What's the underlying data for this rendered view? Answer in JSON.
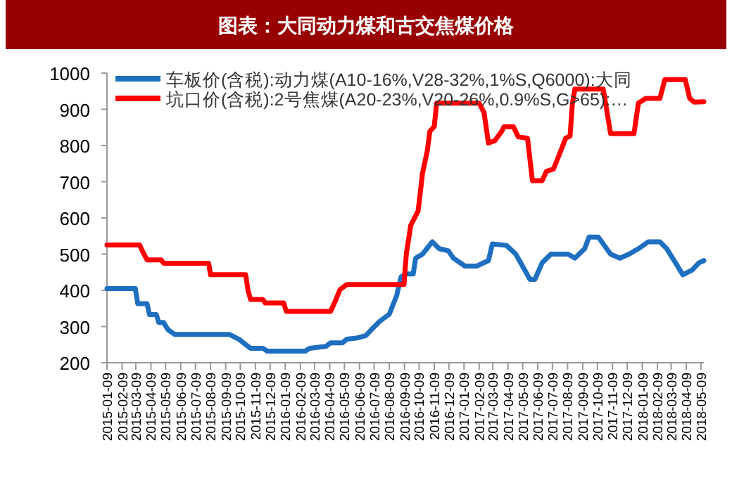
{
  "chart_data": {
    "type": "line",
    "title": "图表：大同动力煤和古交焦煤价格",
    "ylim": [
      200,
      1000
    ],
    "yticks": [
      200,
      300,
      400,
      500,
      600,
      700,
      800,
      900,
      1000
    ],
    "xlim": [
      "2015-01-09",
      "2018-05-15"
    ],
    "xticks": [
      "2015-01-09",
      "2015-02-09",
      "2015-03-09",
      "2015-04-09",
      "2015-05-09",
      "2015-06-09",
      "2015-07-09",
      "2015-08-09",
      "2015-09-09",
      "2015-10-09",
      "2015-11-09",
      "2015-12-09",
      "2016-01-09",
      "2016-02-09",
      "2016-03-09",
      "2016-04-09",
      "2016-05-09",
      "2016-06-09",
      "2016-07-09",
      "2016-08-09",
      "2016-09-09",
      "2016-10-09",
      "2016-11-09",
      "2016-12-09",
      "2017-01-09",
      "2017-02-09",
      "2017-03-09",
      "2017-04-09",
      "2017-05-09",
      "2017-06-09",
      "2017-07-09",
      "2017-08-09",
      "2017-09-09",
      "2017-10-09",
      "2017-11-09",
      "2017-12-09",
      "2018-01-09",
      "2018-02-09",
      "2018-03-09",
      "2018-04-09",
      "2018-05-09"
    ],
    "grid": false,
    "legend": "top left",
    "marker": "none",
    "line_style": "solid",
    "series": [
      {
        "name": "车板价(含税):动力煤(A10-16%,V28-32%,1%S,Q6000):大同",
        "color": "#1f6fc0",
        "x": [
          "2015-01-09",
          "2015-03-08",
          "2015-03-13",
          "2015-04-01",
          "2015-04-06",
          "2015-04-20",
          "2015-04-25",
          "2015-05-05",
          "2015-05-14",
          "2015-05-28",
          "2015-09-17",
          "2015-10-06",
          "2015-10-20",
          "2015-10-30",
          "2015-11-24",
          "2015-12-03",
          "2016-02-19",
          "2016-02-28",
          "2016-04-01",
          "2016-04-11",
          "2016-05-05",
          "2016-05-14",
          "2016-06-03",
          "2016-06-22",
          "2016-07-06",
          "2016-07-21",
          "2016-08-09",
          "2016-08-24",
          "2016-09-02",
          "2016-09-13",
          "2016-09-27",
          "2016-10-02",
          "2016-10-16",
          "2016-11-05",
          "2016-11-19",
          "2016-12-08",
          "2016-12-18",
          "2017-01-11",
          "2017-02-04",
          "2017-02-28",
          "2017-03-08",
          "2017-04-06",
          "2017-04-25",
          "2017-05-24",
          "2017-06-03",
          "2017-06-18",
          "2017-07-06",
          "2017-08-10",
          "2017-08-24",
          "2017-09-13",
          "2017-09-22",
          "2017-10-11",
          "2017-11-05",
          "2017-11-24",
          "2017-12-13",
          "2018-01-01",
          "2018-01-21",
          "2018-02-14",
          "2018-02-28",
          "2018-03-18",
          "2018-04-02",
          "2018-04-21",
          "2018-05-05",
          "2018-05-15"
        ],
        "values": [
          405,
          405,
          363,
          363,
          333,
          333,
          311,
          311,
          291,
          278,
          278,
          265,
          250,
          240,
          240,
          232,
          232,
          240,
          245,
          255,
          255,
          265,
          268,
          275,
          295,
          315,
          334,
          385,
          437,
          445,
          445,
          489,
          500,
          534,
          515,
          509,
          489,
          467,
          467,
          482,
          528,
          524,
          500,
          430,
          430,
          476,
          500,
          500,
          489,
          515,
          547,
          547,
          500,
          489,
          500,
          515,
          534,
          534,
          515,
          476,
          443,
          456,
          476,
          482
        ]
      },
      {
        "name": "坑口价(含税):2号焦煤(A20-23%,V20-26%,0.9%S,G>65):…",
        "color": "#ff0000",
        "x": [
          "2015-01-09",
          "2015-03-17",
          "2015-03-22",
          "2015-04-01",
          "2015-04-30",
          "2015-05-05",
          "2015-08-05",
          "2015-08-09",
          "2015-10-20",
          "2015-10-25",
          "2015-10-30",
          "2015-11-24",
          "2015-11-29",
          "2016-01-06",
          "2016-01-11",
          "2016-04-11",
          "2016-04-21",
          "2016-04-30",
          "2016-05-14",
          "2016-09-08",
          "2016-09-13",
          "2016-09-22",
          "2016-10-07",
          "2016-10-16",
          "2016-10-26",
          "2016-10-31",
          "2016-11-09",
          "2016-11-14",
          "2017-02-09",
          "2017-02-19",
          "2017-02-28",
          "2017-03-13",
          "2017-03-27",
          "2017-04-01",
          "2017-04-20",
          "2017-04-30",
          "2017-05-19",
          "2017-05-29",
          "2017-06-18",
          "2017-06-27",
          "2017-07-11",
          "2017-07-21",
          "2017-08-05",
          "2017-08-14",
          "2017-08-19",
          "2017-08-24",
          "2017-10-21",
          "2017-11-05",
          "2017-12-23",
          "2018-01-01",
          "2018-01-16",
          "2018-02-14",
          "2018-02-24",
          "2018-04-07",
          "2018-04-16",
          "2018-04-25",
          "2018-05-15"
        ],
        "values": [
          525,
          525,
          510,
          484,
          484,
          475,
          475,
          443,
          443,
          398,
          375,
          375,
          365,
          365,
          342,
          342,
          372,
          402,
          416,
          416,
          502,
          580,
          619,
          723,
          787,
          839,
          852,
          917,
          917,
          891,
          807,
          813,
          839,
          852,
          852,
          824,
          820,
          703,
          703,
          729,
          735,
          768,
          820,
          826,
          917,
          956,
          956,
          833,
          833,
          917,
          930,
          930,
          982,
          982,
          930,
          920,
          921
        ]
      }
    ]
  }
}
